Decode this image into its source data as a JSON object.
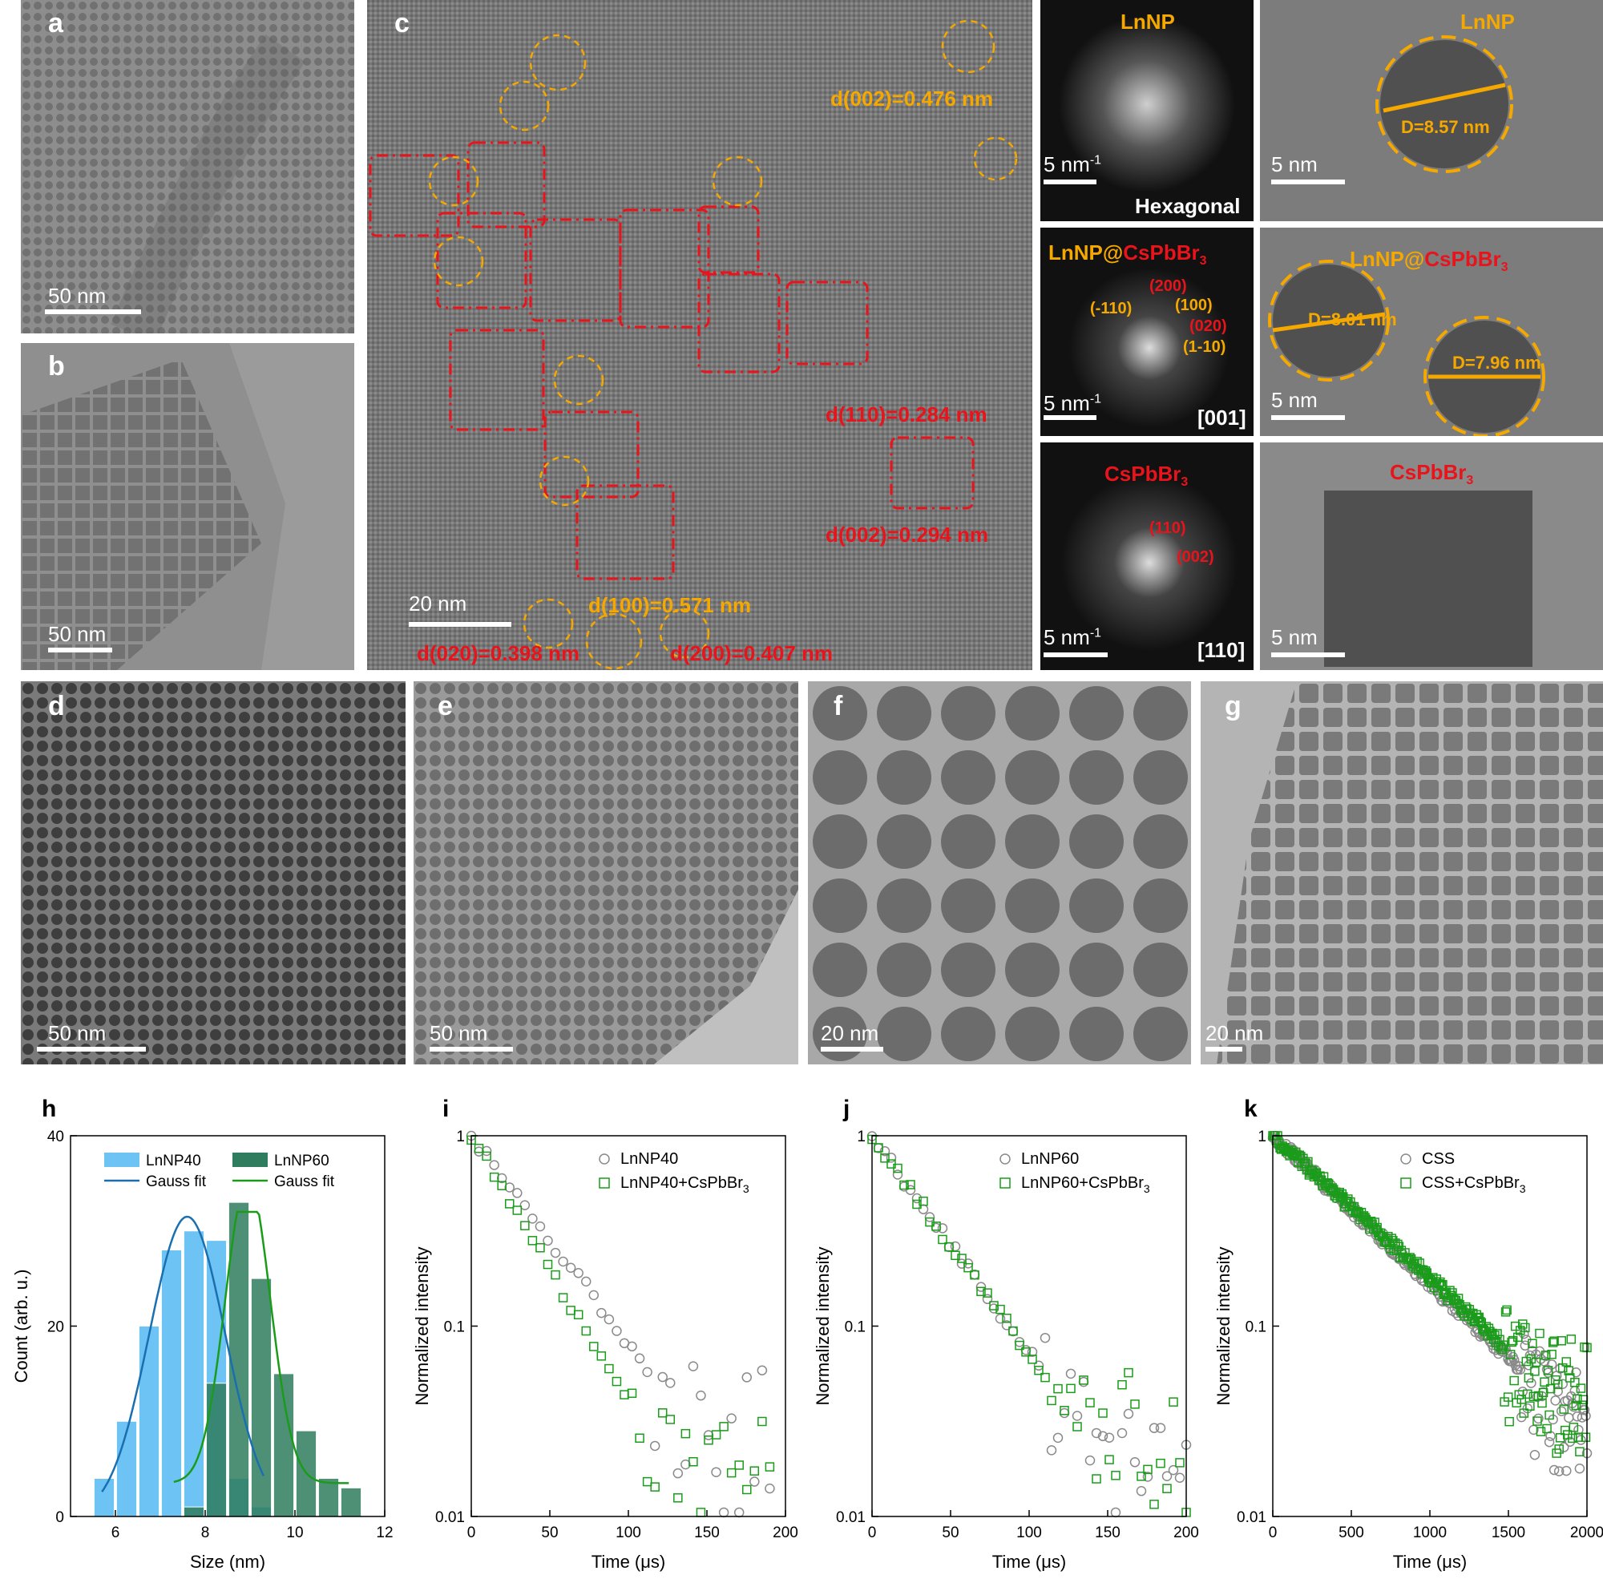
{
  "panels": {
    "a": {
      "label": "a",
      "scale": "50 nm"
    },
    "b": {
      "label": "b",
      "scale": "50 nm"
    },
    "c": {
      "label": "c",
      "scale": "20 nm",
      "annotations": [
        "d(002)=0.476 nm",
        "d(110)=0.284 nm",
        "d(002)=0.294 nm",
        "d(100)=0.571 nm",
        "d(020)=0.398 nm",
        "d(200)=0.407 nm"
      ]
    },
    "fft1": {
      "title": "LnNP",
      "scale": "5 nm",
      "scale_sup": "-1",
      "corner": "Hexagonal"
    },
    "fft2": {
      "title_a": "LnNP@",
      "title_b": "CsPbBr",
      "title_sub": "3",
      "scale": "5 nm",
      "scale_sup": "-1",
      "corner": "[001]",
      "spots": [
        "(200)",
        "(-110)",
        "(100)",
        "(020)",
        "(1-10)"
      ]
    },
    "fft3": {
      "title": "CsPbBr",
      "title_sub": "3",
      "scale": "5 nm",
      "scale_sup": "-1",
      "corner": "[110]",
      "spots": [
        "(110)",
        "(002)"
      ]
    },
    "hr1": {
      "title": "LnNP",
      "scale": "5 nm",
      "dlabel": "D=8.57 nm"
    },
    "hr2": {
      "title_a": "LnNP@",
      "title_b": "CsPbBr",
      "title_sub": "3",
      "scale": "5 nm",
      "dlabel1": "D=8.01 nm",
      "dlabel2": "D=7.96 nm"
    },
    "hr3": {
      "title": "CsPbBr",
      "title_sub": "3",
      "scale": "5 nm"
    },
    "d": {
      "label": "d",
      "scale": "50 nm"
    },
    "e": {
      "label": "e",
      "scale": "50 nm"
    },
    "f": {
      "label": "f",
      "scale": "20 nm"
    },
    "g": {
      "label": "g",
      "scale": "20 nm"
    }
  },
  "colors": {
    "yellow": "#f5a800",
    "red": "#e8131b",
    "blue": "#6ec3f5",
    "darkgreen": "#2f7d5e",
    "green": "#1a9c1a",
    "gray": "#8a8a8a"
  },
  "chart_data": [
    {
      "label": "h",
      "type": "bar",
      "xlabel": "Size (nm)",
      "ylabel": "Count (arb. u.)",
      "xlim": [
        5,
        12
      ],
      "ylim": [
        0,
        40
      ],
      "xticks": [
        "6",
        "8",
        "10",
        "12"
      ],
      "yticks": [
        "0",
        "20",
        "40"
      ],
      "bin_width": 0.5,
      "legend": [
        "LnNP40",
        "LnNP60",
        "Gauss fit",
        "Gauss fit"
      ],
      "series": [
        {
          "name": "LnNP40",
          "x": [
            5.75,
            6.25,
            6.75,
            7.25,
            7.75,
            8.25,
            8.75,
            9.25
          ],
          "values": [
            4,
            10,
            20,
            28,
            30,
            29,
            4,
            1
          ]
        },
        {
          "name": "LnNP60",
          "x": [
            7.75,
            8.25,
            8.75,
            9.25,
            9.75,
            10.25,
            10.75,
            11.25
          ],
          "values": [
            1,
            14,
            33,
            25,
            15,
            9,
            4,
            3
          ]
        }
      ],
      "fits": [
        {
          "name": "Gauss fit",
          "mu": 7.6,
          "sigma": 0.85,
          "amp": 31.5,
          "xrange": [
            5.7,
            9.3
          ]
        },
        {
          "name": "Gauss fit",
          "mu": 8.95,
          "sigma": 0.5,
          "amp": 32,
          "baseline": 3.5,
          "xrange": [
            7.3,
            11.2
          ]
        }
      ]
    },
    {
      "label": "i",
      "type": "scatter",
      "xlabel": "Time (μs)",
      "ylabel": "Normalized intensity",
      "xlim": [
        0,
        200
      ],
      "ylim": [
        0.01,
        1
      ],
      "yscale": "log",
      "xticks": [
        "0",
        "50",
        "100",
        "150",
        "200"
      ],
      "yticks": [
        "0.01",
        "0.1",
        "1"
      ],
      "series": [
        {
          "name": "LnNP40",
          "tau": 40,
          "floor": 0.03,
          "n": 40,
          "xmax": 190
        },
        {
          "name": "LnNP40+CsPbBr3",
          "tau": 31,
          "floor": 0.02,
          "n": 40,
          "xmax": 190
        }
      ]
    },
    {
      "label": "j",
      "type": "scatter",
      "xlabel": "Time (μs)",
      "ylabel": "Normalized intensity",
      "xlim": [
        0,
        200
      ],
      "ylim": [
        0.01,
        1
      ],
      "yscale": "log",
      "xticks": [
        "0",
        "50",
        "100",
        "150",
        "200"
      ],
      "yticks": [
        "0.01",
        "0.1",
        "1"
      ],
      "series": [
        {
          "name": "LnNP60",
          "tau": 38,
          "floor": 0.03,
          "n": 50,
          "xmax": 200
        },
        {
          "name": "LnNP60+CsPbBr3",
          "tau": 38,
          "floor": 0.025,
          "n": 50,
          "xmax": 200
        }
      ]
    },
    {
      "label": "k",
      "type": "scatter",
      "xlabel": "Time (μs)",
      "ylabel": "Normalized intensity",
      "xlim": [
        0,
        2000
      ],
      "ylim": [
        0.01,
        1
      ],
      "yscale": "log",
      "xticks": [
        "0",
        "500",
        "1000",
        "1500",
        "2000"
      ],
      "yticks": [
        "0.01",
        "0.1",
        "1"
      ],
      "series": [
        {
          "name": "CSS",
          "tau": 560,
          "floor": 0.03,
          "n": 260,
          "xmax": 2000
        },
        {
          "name": "CSS+CsPbBr3",
          "tau": 580,
          "floor": 0.04,
          "n": 260,
          "xmax": 2000
        }
      ]
    }
  ]
}
